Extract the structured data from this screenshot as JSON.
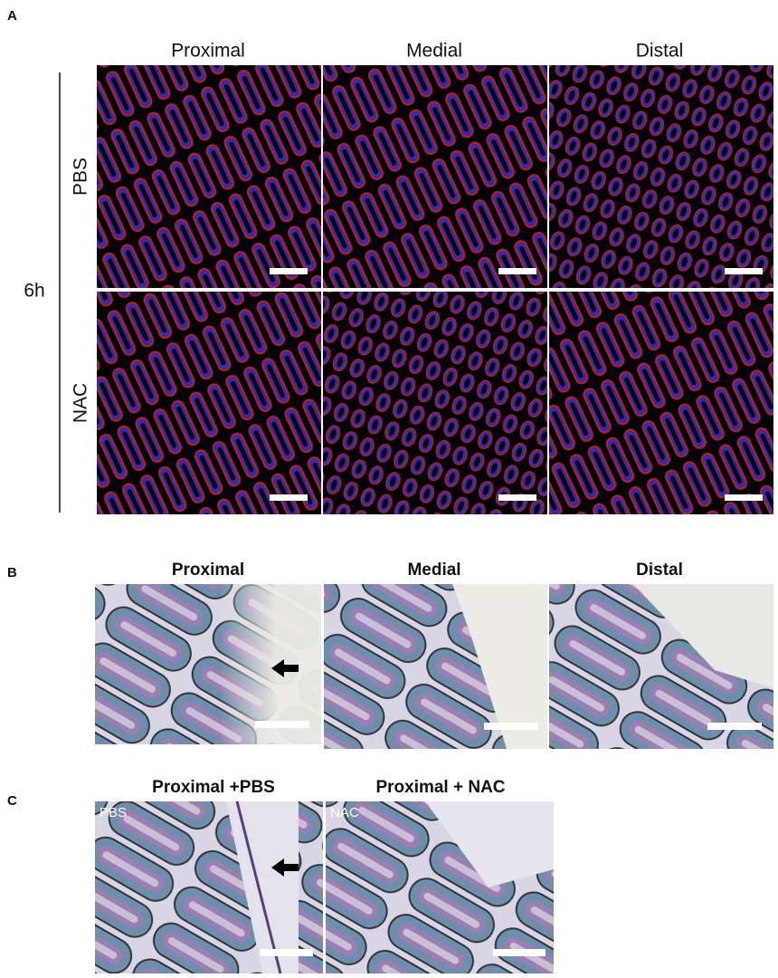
{
  "panel_a": {
    "label": "A",
    "columns": [
      "Proximal",
      "Medial",
      "Distal"
    ],
    "rows": [
      "PBS",
      "NAC"
    ],
    "time": "6h"
  },
  "panel_b": {
    "label": "B",
    "columns": [
      "Proximal",
      "Medial",
      "Distal"
    ]
  },
  "panel_c": {
    "label": "C",
    "columns": [
      "Proximal +PBS",
      "Proximal + NAC"
    ],
    "image_labels": [
      "PBS",
      "NAC"
    ]
  }
}
